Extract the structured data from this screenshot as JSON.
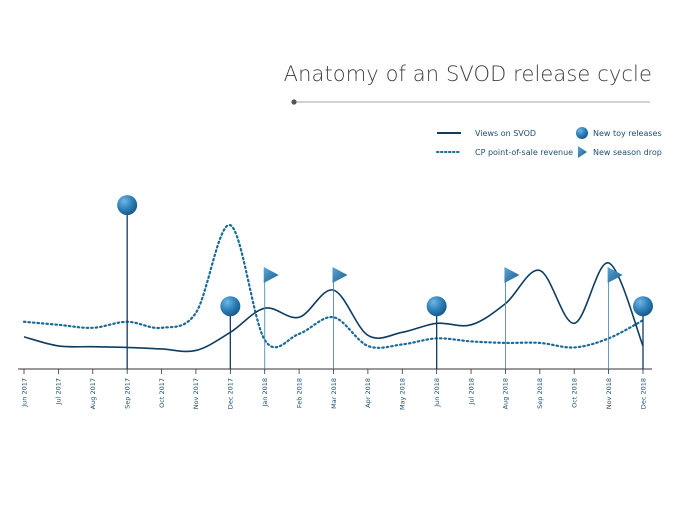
{
  "chart_data": {
    "type": "line",
    "title": "Anatomy of an SVOD release cycle",
    "categories": [
      "Jun 2017",
      "Jul 2017",
      "Aug 2017",
      "Sep 2017",
      "Oct 2017",
      "Nov 2017",
      "Dec 2017",
      "Jan 2018",
      "Feb 2018",
      "Mar 2018",
      "Apr 2018",
      "May 2018",
      "Jun 2018",
      "Jul 2018",
      "Aug 2018",
      "Sep 2018",
      "Oct 2018",
      "Nov 2018",
      "Dec 2018"
    ],
    "series": [
      {
        "name": "Views on SVOD",
        "style": "solid",
        "values": [
          14,
          8,
          7.5,
          7,
          6,
          5,
          17,
          33,
          27,
          45,
          15,
          17,
          23,
          22,
          36,
          58,
          23,
          63,
          8
        ]
      },
      {
        "name": "CP point-of-sale revenue",
        "style": "dotted",
        "values": [
          24,
          22,
          20,
          24,
          20,
          30,
          88,
          12,
          16,
          27,
          8,
          9,
          13,
          11,
          10,
          10,
          7,
          13,
          25
        ]
      }
    ],
    "events": [
      {
        "name": "New toy releases",
        "marker": "circle",
        "x": [
          "Sep 2017",
          "Dec 2017",
          "Jun 2018",
          "Dec 2018"
        ],
        "level": [
          100,
          33,
          33,
          33
        ]
      },
      {
        "name": "New season drop",
        "marker": "triangle",
        "x": [
          "Jan 2018",
          "Mar 2018",
          "Aug 2018",
          "Nov 2018"
        ],
        "level": [
          55,
          55,
          55,
          55
        ]
      }
    ],
    "ylim": [
      0,
      110
    ],
    "grid": false,
    "legend_position": "top-right",
    "colors": {
      "line": "#0e3d61",
      "marker": "#2d7fb6",
      "marker_dark": "#1a5b8d",
      "tick": "#1d4f73",
      "title": "#3f3f3f",
      "rule": "#888888"
    }
  }
}
